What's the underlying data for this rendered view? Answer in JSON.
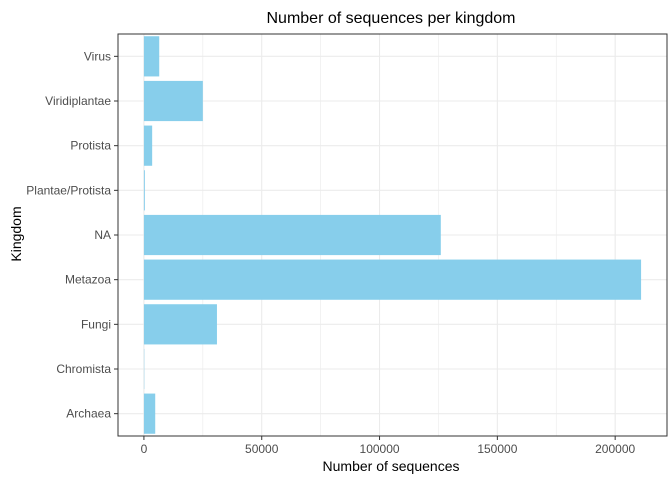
{
  "chart_data": {
    "type": "bar",
    "orientation": "horizontal",
    "title": "Number of sequences per kingdom",
    "xlabel": "Number of sequences",
    "ylabel": "Kingdom",
    "categories": [
      "Archaea",
      "Chromista",
      "Fungi",
      "Metazoa",
      "NA",
      "Plantae/Protista",
      "Protista",
      "Viridiplantae",
      "Virus"
    ],
    "values": [
      4800,
      150,
      31000,
      211000,
      126000,
      400,
      3500,
      25000,
      6500
    ],
    "xlim": [
      -11000,
      222000
    ],
    "xticks": [
      0,
      50000,
      100000,
      150000,
      200000
    ],
    "xtick_labels": [
      "0",
      "50000",
      "100000",
      "150000",
      "200000"
    ],
    "grid": true,
    "legend": "none",
    "bar_color": "#87CEEB",
    "grid_color": "#EBEBEB",
    "border_color": "#333333",
    "text_color": "#000000",
    "tick_label_color": "#4D4D4D"
  }
}
